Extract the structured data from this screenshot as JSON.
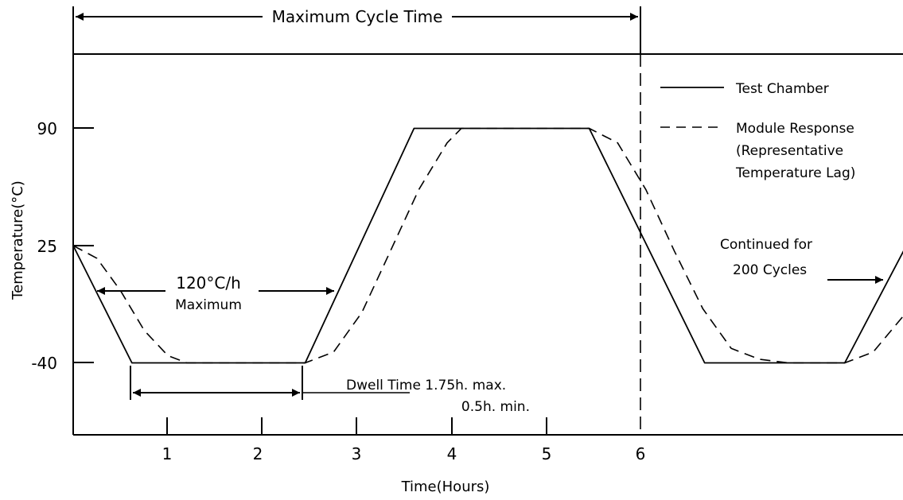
{
  "chart_data": {
    "type": "line",
    "title": "",
    "xlabel": "Time(Hours)",
    "ylabel": "Temperature(°C)",
    "x_ticks": [
      "1",
      "2",
      "3",
      "4",
      "5",
      "6"
    ],
    "y_ticks": [
      "90",
      "25",
      "-40"
    ],
    "xlim": [
      0,
      8.8
    ],
    "ylim": [
      -60,
      110
    ],
    "legend": {
      "placement": "top-right"
    },
    "series": [
      {
        "name": "Test Chamber",
        "style": "solid",
        "x": [
          0,
          0.62,
          2.45,
          3.6,
          5.45,
          6.67,
          8.15,
          8.8
        ],
        "y": [
          25,
          -40,
          -40,
          90,
          90,
          -40,
          -40,
          25
        ]
      },
      {
        "name": "Module Response",
        "style": "dashed",
        "x": [
          0,
          0.25,
          0.5,
          0.75,
          1.0,
          1.2,
          2.45,
          2.75,
          3.05,
          3.35,
          3.65,
          3.95,
          4.1,
          5.45,
          5.75,
          6.05,
          6.35,
          6.65,
          6.95,
          7.25,
          7.55,
          8.15,
          8.45,
          8.8
        ],
        "y": [
          25,
          18,
          0,
          -22,
          -36,
          -40,
          -40,
          -34,
          -12,
          22,
          56,
          82,
          90,
          90,
          82,
          56,
          22,
          -10,
          -32,
          -38,
          -40,
          -40,
          -34,
          -12
        ]
      }
    ]
  },
  "legend": {
    "solid_label": "Test Chamber",
    "dashed_label_lines": [
      "Module Response",
      "(Representative",
      "Temperature Lag)"
    ]
  },
  "annotations": {
    "max_cycle_time": "Maximum Cycle Time",
    "rate_line1": "120°C/h",
    "rate_line2": "Maximum",
    "dwell_line1": "Dwell Time 1.75h. max.",
    "dwell_line2": "0.5h. min.",
    "continued_line1": "Continued for",
    "continued_line2": "200 Cycles"
  }
}
